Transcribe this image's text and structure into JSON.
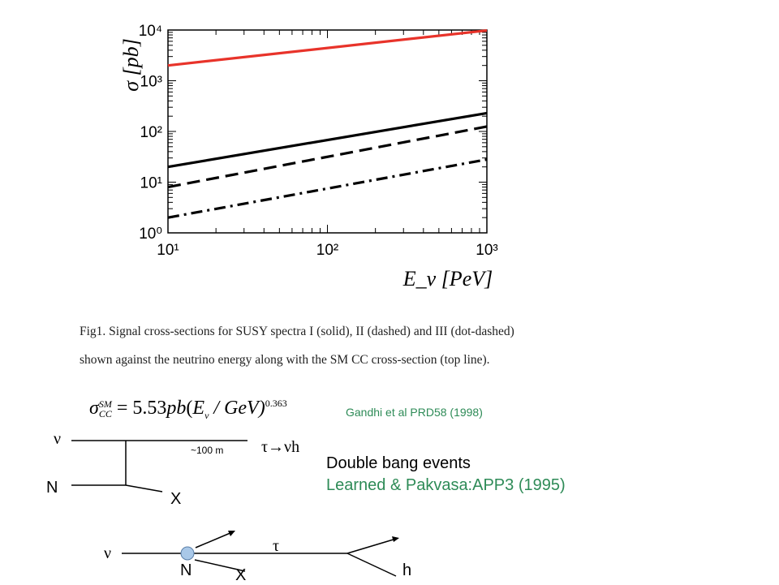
{
  "chart_data": {
    "type": "line",
    "xlabel": "E_ν [PeV]",
    "ylabel": "σ [pb]",
    "x_scale": "log",
    "y_scale": "log",
    "xlim": [
      10,
      1000
    ],
    "ylim": [
      1,
      10000
    ],
    "x_ticks": [
      "10¹",
      "10²",
      "10³"
    ],
    "y_ticks": [
      "10⁰",
      "10¹",
      "10²",
      "10³",
      "10⁴"
    ],
    "grid": false,
    "series": [
      {
        "style": "solid",
        "color": "#e8332a",
        "x": [
          10,
          1000
        ],
        "y": [
          2000,
          9800
        ]
      },
      {
        "style": "solid",
        "color": "#000000",
        "x": [
          10,
          1000
        ],
        "y": [
          20,
          230
        ]
      },
      {
        "style": "dashed",
        "color": "#000000",
        "x": [
          10,
          1000
        ],
        "y": [
          8,
          125
        ]
      },
      {
        "style": "dot-dashed",
        "color": "#000000",
        "x": [
          10,
          1000
        ],
        "y": [
          2,
          28
        ]
      }
    ]
  },
  "caption": {
    "line1": "Fig1. Signal cross-sections for SUSY spectra I (solid), II (dashed) and III (dot-dashed)",
    "line2": "shown against the neutrino energy along with the SM CC cross-section (top line)."
  },
  "formula": {
    "sigma": "σ",
    "sup": "SM",
    "sub": "CC",
    "eq": " = 5.53",
    "pb": "pb",
    "open": "(",
    "e": "E",
    "nu_sub": "ν",
    "gev": " / GeV)",
    "exp": "0.363"
  },
  "reference": "Gandhi et al PRD58 (1998)",
  "diagram1": {
    "nu": "ν",
    "n": "N",
    "x": "X",
    "distance": "~100 m",
    "decay": "τ→νh"
  },
  "double_bang": {
    "title": "Double bang events",
    "ref": "Learned & Pakvasa:APP3 (1995)"
  },
  "diagram2": {
    "nu": "ν",
    "n": "N",
    "x": "X",
    "tau": "τ",
    "h": "h"
  }
}
